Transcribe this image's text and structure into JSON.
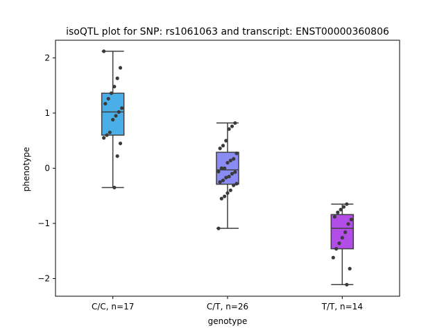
{
  "chart_data": {
    "type": "box",
    "title": "isoQTL plot for SNP: rs1061063 and transcript: ENST00000360806",
    "xlabel": "genotype",
    "ylabel": "phenotype",
    "ylim": [
      -2.32,
      2.32
    ],
    "yticks": [
      -2,
      -1,
      0,
      1,
      2
    ],
    "yticklabels": [
      "−2",
      "−1",
      "0",
      "1",
      "2"
    ],
    "grid": false,
    "categories": [
      "C/C, n=17",
      "C/T, n=26",
      "T/T, n=14"
    ],
    "colors": [
      "#4aaee8",
      "#8a8cf3",
      "#b24de8"
    ],
    "boxes": [
      {
        "category": "C/C, n=17",
        "whisker_low": -0.35,
        "q1": 0.6,
        "median": 1.02,
        "q3": 1.36,
        "whisker_high": 2.12
      },
      {
        "category": "C/T, n=26",
        "whisker_low": -1.09,
        "q1": -0.29,
        "median": -0.03,
        "q3": 0.29,
        "whisker_high": 0.82
      },
      {
        "category": "T/T, n=14",
        "whisker_low": -2.11,
        "q1": -1.46,
        "median": -1.09,
        "q3": -0.84,
        "whisker_high": -0.65
      }
    ],
    "points": [
      [
        2.12,
        1.82,
        1.63,
        1.48,
        1.36,
        1.26,
        1.17,
        1.09,
        1.02,
        0.95,
        0.88,
        0.65,
        0.6,
        0.55,
        0.45,
        0.22,
        -0.35
      ],
      [
        0.82,
        0.76,
        0.71,
        0.5,
        0.41,
        0.36,
        0.27,
        0.17,
        0.14,
        0.1,
        0.0,
        0.0,
        -0.06,
        -0.07,
        -0.1,
        -0.15,
        -0.17,
        -0.22,
        -0.25,
        -0.28,
        -0.31,
        -0.4,
        -0.45,
        -0.51,
        -0.55,
        -1.09
      ],
      [
        -0.65,
        -0.7,
        -0.75,
        -0.8,
        -0.88,
        -0.93,
        -1.01,
        -1.16,
        -1.26,
        -1.36,
        -1.46,
        -1.62,
        -1.82,
        -2.11
      ]
    ]
  }
}
